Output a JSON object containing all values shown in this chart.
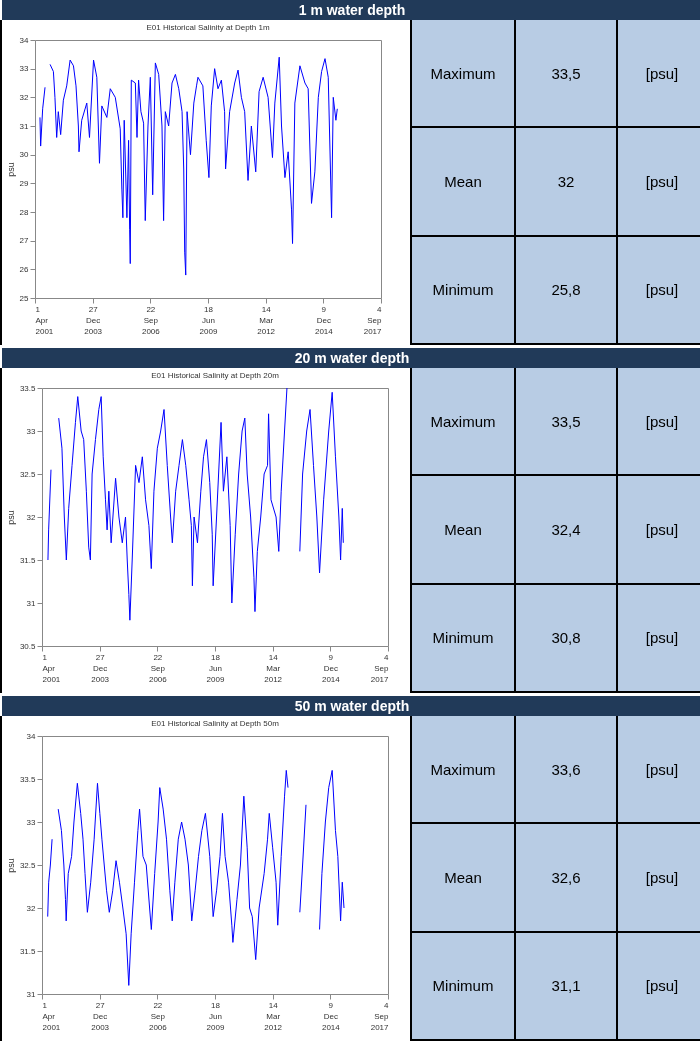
{
  "chart_data": [
    {
      "type": "line",
      "title": "E01 Historical Salinity at Depth 1m",
      "ylabel": "psu",
      "xlim": [
        "2001-04-01",
        "2017-09-04"
      ],
      "xticks": [
        {
          "value": "2001-04-01",
          "label": "1 Apr 2001"
        },
        {
          "value": "2003-12-27",
          "label": "27 Dec 2003"
        },
        {
          "value": "2006-09-22",
          "label": "22 Sep 2006"
        },
        {
          "value": "2009-06-18",
          "label": "18 Jun 2009"
        },
        {
          "value": "2012-03-14",
          "label": "14 Mar 2012"
        },
        {
          "value": "2014-12-09",
          "label": "9 Dec 2014"
        },
        {
          "value": "2017-09-04",
          "label": "4 Sep 2017"
        }
      ],
      "ylim": [
        25,
        34
      ],
      "yticks": [
        25,
        26,
        27,
        28,
        29,
        30,
        31,
        32,
        33,
        34
      ],
      "x": [
        "2001-06-26",
        "2001-07-08",
        "2001-08-12",
        "2001-09-22",
        "2001-10-15",
        "2001-12-18",
        "2002-02-14",
        "2002-03-13",
        "2002-04-12",
        "2002-05-10",
        "2002-06-20",
        "2002-08-06",
        "2002-10-03",
        "2002-12-01",
        "2003-01-28",
        "2003-03-13",
        "2003-04-23",
        "2003-05-04",
        "2003-06-20",
        "2003-09-16",
        "2003-11-02",
        "2004-01-11",
        "2004-03-08",
        "2004-04-23",
        "2004-06-03",
        "2004-08-29",
        "2004-10-27",
        "2005-01-22",
        "2005-04-18",
        "2005-05-16",
        "2005-06-03",
        "2005-06-26",
        "2005-08-12",
        "2005-09-10",
        "2005-09-28",
        "2005-10-09",
        "2005-10-27",
        "2006-01-05",
        "2006-02-03",
        "2006-03-02",
        "2006-04-12",
        "2006-05-28",
        "2006-06-26",
        "2006-08-12",
        "2006-09-22",
        "2006-11-02",
        "2006-12-18",
        "2007-02-14",
        "2007-04-12",
        "2007-05-10",
        "2007-06-09",
        "2007-08-06",
        "2007-10-03",
        "2007-12-01",
        "2008-01-28",
        "2008-03-25",
        "2008-04-23",
        "2008-05-10",
        "2008-05-28",
        "2008-06-20",
        "2008-08-18",
        "2008-10-15",
        "2008-12-01",
        "2008-12-26",
        "2009-03-21",
        "2009-05-18",
        "2009-07-04",
        "2009-08-14",
        "2009-10-11",
        "2009-12-08",
        "2010-02-05",
        "2010-04-02",
        "2010-04-19",
        "2010-06-28",
        "2010-09-24",
        "2010-11-21",
        "2011-01-18",
        "2011-03-16",
        "2011-05-13",
        "2011-07-10",
        "2011-09-24",
        "2011-11-21",
        "2012-01-30",
        "2012-04-25",
        "2012-07-10",
        "2012-08-20",
        "2012-11-04",
        "2012-12-14",
        "2013-02-11",
        "2013-04-08",
        "2013-06-05",
        "2013-06-23",
        "2013-08-02",
        "2013-10-29",
        "2014-01-24",
        "2014-03-21",
        "2014-05-18",
        "2014-07-15",
        "2014-09-13",
        "2014-11-09",
        "2015-01-07",
        "2015-03-04",
        "2015-05-01",
        "2015-05-30",
        "2015-07-15",
        "2015-08-08"
      ],
      "series": [
        {
          "color": "#0000ff",
          "values": [
            31.3,
            30.3,
            31.6,
            32.35,
            null,
            33.15,
            32.9,
            32.0,
            30.6,
            31.5,
            30.7,
            31.9,
            32.4,
            33.3,
            33.1,
            32.4,
            31.0,
            30.1,
            31.2,
            31.8,
            30.6,
            33.3,
            32.7,
            29.7,
            31.7,
            31.3,
            32.3,
            32.0,
            30.9,
            28.8,
            27.8,
            31.2,
            27.8,
            30.5,
            27.4,
            26.2,
            32.6,
            32.5,
            30.6,
            32.6,
            31.5,
            31.1,
            27.7,
            31.0,
            32.7,
            28.6,
            33.2,
            32.8,
            31.0,
            27.7,
            31.5,
            31.0,
            32.5,
            32.8,
            32.3,
            31.5,
            29.5,
            26.6,
            25.8,
            31.5,
            30.0,
            31.8,
            32.4,
            32.7,
            32.4,
            30.5,
            29.2,
            31.7,
            33.0,
            32.3,
            32.6,
            31.5,
            29.5,
            31.5,
            32.5,
            32.95,
            32.0,
            31.5,
            29.1,
            31.0,
            29.4,
            32.2,
            32.7,
            32.0,
            29.9,
            31.8,
            33.4,
            31.0,
            29.2,
            30.1,
            28.1,
            26.9,
            31.8,
            33.1,
            32.5,
            32.3,
            28.3,
            29.4,
            32.0,
            32.9,
            33.35,
            32.7,
            27.8,
            32.0,
            31.2,
            31.6
          ]
        }
      ]
    },
    {
      "type": "other",
      "title": "1 m water depth",
      "annotations": [
        "Maximum",
        "33,5",
        "[psu]",
        "Mean",
        "32",
        "[psu]",
        "Minimum",
        "25,8",
        "[psu]"
      ]
    },
    {
      "type": "line",
      "title": "E01 Historical Salinity at Depth 20m",
      "ylabel": "psu",
      "xlim": [
        "2001-04-01",
        "2017-09-04"
      ],
      "xticks": [
        {
          "value": "2001-04-01",
          "label": "1 Apr 2001"
        },
        {
          "value": "2003-12-27",
          "label": "27 Dec 2003"
        },
        {
          "value": "2006-09-22",
          "label": "22 Sep 2006"
        },
        {
          "value": "2009-06-18",
          "label": "18 Jun 2009"
        },
        {
          "value": "2012-03-14",
          "label": "14 Mar 2012"
        },
        {
          "value": "2014-12-09",
          "label": "9 Dec 2014"
        },
        {
          "value": "2017-09-04",
          "label": "4 Sep 2017"
        }
      ],
      "ylim": [
        30.5,
        33.5
      ],
      "yticks": [
        30.5,
        31,
        31.5,
        32,
        32.5,
        33,
        33.5
      ],
      "x": [
        "2001-07-13",
        "2001-07-25",
        "2001-09-04",
        "2001-10-20",
        "2002-01-16",
        "2002-03-13",
        "2002-04-23",
        "2002-05-28",
        "2002-07-08",
        "2002-09-04",
        "2002-11-02",
        "2002-12-12",
        "2003-02-09",
        "2003-03-25",
        "2003-05-10",
        "2003-06-20",
        "2003-07-19",
        "2003-08-18",
        "2003-10-15",
        "2003-12-12",
        "2004-01-22",
        "2004-02-26",
        "2004-04-06",
        "2004-05-04",
        "2004-06-03",
        "2004-07-13",
        "2004-09-28",
        "2004-11-25",
        "2005-01-22",
        "2005-03-19",
        "2005-04-18",
        "2005-05-16",
        "2005-06-03",
        "2005-07-13",
        "2005-09-10",
        "2005-11-08",
        "2006-01-05",
        "2006-03-02",
        "2006-04-29",
        "2006-06-09",
        "2006-07-25",
        "2006-09-22",
        "2006-11-19",
        "2007-01-16",
        "2007-03-13",
        "2007-05-10",
        "2007-06-09",
        "2007-08-06",
        "2007-10-03",
        "2007-12-01",
        "2008-01-28",
        "2008-03-25",
        "2008-05-04",
        "2008-05-22",
        "2008-06-20",
        "2008-08-18",
        "2008-10-15",
        "2008-12-01",
        "2009-01-21",
        "2009-03-19",
        "2009-05-01",
        "2009-05-17",
        "2009-07-15",
        "2009-10-01",
        "2009-11-11",
        "2010-01-10",
        "2010-03-08",
        "2010-04-06",
        "2010-06-04",
        "2010-08-02",
        "2010-10-01",
        "2010-11-17",
        "2010-12-28",
        "2011-02-26",
        "2011-04-24",
        "2011-05-12",
        "2011-06-22",
        "2011-08-20",
        "2011-10-18",
        "2011-12-16",
        "2012-01-03",
        "2012-02-14",
        "2012-05-12",
        "2012-06-28",
        "2012-08-09",
        "2012-10-06",
        "2012-11-17",
        "2013-03-01",
        "2013-06-28",
        "2013-08-15",
        "2013-10-25",
        "2013-12-22",
        "2014-02-20",
        "2014-04-19",
        "2014-06-05",
        "2014-08-15",
        "2014-11-11",
        "2015-01-10",
        "2015-03-08",
        "2015-05-06",
        "2015-06-05",
        "2015-07-04",
        "2015-07-22"
      ],
      "series": [
        {
          "color": "#0000ff",
          "values": [
            31.5,
            31.85,
            32.55,
            null,
            33.15,
            32.8,
            32.0,
            31.5,
            32.1,
            32.6,
            33.1,
            33.4,
            33.0,
            32.9,
            32.3,
            31.65,
            31.5,
            32.5,
            32.9,
            33.25,
            33.4,
            32.7,
            32.2,
            31.85,
            32.3,
            31.7,
            32.45,
            32.0,
            31.7,
            32.0,
            31.5,
            31.1,
            30.8,
            31.5,
            32.6,
            32.4,
            32.7,
            32.2,
            31.9,
            31.4,
            32.3,
            32.8,
            33.0,
            33.25,
            32.6,
            32.0,
            31.7,
            32.3,
            32.6,
            32.9,
            32.6,
            32.2,
            31.9,
            31.2,
            32.0,
            31.7,
            32.3,
            32.7,
            32.9,
            32.4,
            31.8,
            31.2,
            32.0,
            33.1,
            32.3,
            32.7,
            31.9,
            31.0,
            31.8,
            32.5,
            33.0,
            33.15,
            32.5,
            32.0,
            31.3,
            30.9,
            31.6,
            32.0,
            32.5,
            32.6,
            33.2,
            32.2,
            32.0,
            31.6,
            32.3,
            33.0,
            33.5,
            null,
            31.6,
            32.5,
            33.0,
            33.25,
            32.6,
            32.0,
            31.35,
            32.2,
            33.0,
            33.45,
            32.7,
            32.0,
            31.5,
            32.1,
            31.7
          ]
        }
      ]
    },
    {
      "type": "other",
      "title": "20 m water depth",
      "annotations": [
        "Maximum",
        "33,5",
        "[psu]",
        "Mean",
        "32,4",
        "[psu]",
        "Minimum",
        "30,8",
        "[psu]"
      ]
    },
    {
      "type": "line",
      "title": "E01 Historical Salinity at Depth 50m",
      "ylabel": "psu",
      "xlim": [
        "2001-04-01",
        "2017-09-04"
      ],
      "xticks": [
        {
          "value": "2001-04-01",
          "label": "1 Apr 2001"
        },
        {
          "value": "2003-12-27",
          "label": "27 Dec 2003"
        },
        {
          "value": "2006-09-22",
          "label": "22 Sep 2006"
        },
        {
          "value": "2009-06-18",
          "label": "18 Jun 2009"
        },
        {
          "value": "2012-03-14",
          "label": "14 Mar 2012"
        },
        {
          "value": "2014-12-09",
          "label": "9 Dec 2014"
        },
        {
          "value": "2017-09-04",
          "label": "4 Sep 2017"
        }
      ],
      "ylim": [
        31,
        34
      ],
      "yticks": [
        31,
        31.5,
        32,
        32.5,
        33,
        33.5,
        34
      ],
      "x": [
        "2001-07-09",
        "2001-07-26",
        "2001-08-24",
        "2001-09-23",
        "2001-10-25",
        "2002-01-07",
        "2002-03-04",
        "2002-04-15",
        "2002-05-13",
        "2002-05-25",
        "2002-06-30",
        "2002-08-27",
        "2002-10-07",
        "2002-12-05",
        "2003-02-01",
        "2003-03-13",
        "2003-04-17",
        "2003-05-28",
        "2003-07-25",
        "2003-09-22",
        "2003-11-19",
        "2003-12-30",
        "2004-02-04",
        "2004-03-15",
        "2004-04-25",
        "2004-06-11",
        "2004-08-09",
        "2004-10-06",
        "2004-12-04",
        "2005-02-01",
        "2005-03-30",
        "2005-05-15",
        "2005-06-25",
        "2005-08-22",
        "2005-10-20",
        "2005-11-18",
        "2006-01-16",
        "2006-03-14",
        "2006-05-11",
        "2006-06-10",
        "2006-08-07",
        "2006-10-05",
        "2006-11-03",
        "2007-01-01",
        "2007-02-28",
        "2007-04-27",
        "2007-06-07",
        "2007-07-23",
        "2007-09-20",
        "2007-11-17",
        "2008-01-15",
        "2008-03-13",
        "2008-05-11",
        "2008-07-08",
        "2008-09-05",
        "2008-11-02",
        "2009-01-03",
        "2009-03-19",
        "2009-05-17",
        "2009-07-15",
        "2009-09-13",
        "2009-10-25",
        "2009-12-10",
        "2010-02-08",
        "2010-04-06",
        "2010-04-24",
        "2010-07-04",
        "2010-09-02",
        "2010-10-31",
        "2010-12-28",
        "2011-02-08",
        "2011-03-26",
        "2011-05-25",
        "2011-07-23",
        "2011-10-18",
        "2011-12-16",
        "2012-01-15",
        "2012-03-14",
        "2012-05-12",
        "2012-06-10",
        "2012-08-09",
        "2012-10-06",
        "2012-11-05",
        "2012-12-05",
        "2013-03-01",
        "2013-06-28",
        "2013-08-15",
        "2013-10-13",
        "2014-01-01",
        "2014-06-05",
        "2014-07-16",
        "2014-09-14",
        "2014-11-11",
        "2015-01-10",
        "2015-03-08",
        "2015-04-18",
        "2015-06-05",
        "2015-07-04",
        "2015-08-03"
      ],
      "series": [
        {
          "color": "#0000ff",
          "values": [
            31.9,
            32.3,
            32.5,
            32.8,
            null,
            33.15,
            32.9,
            32.5,
            32.1,
            31.85,
            32.4,
            32.6,
            33.0,
            33.45,
            33.1,
            32.8,
            32.4,
            31.95,
            32.3,
            32.8,
            33.45,
            33.1,
            32.8,
            32.5,
            32.2,
            31.95,
            32.2,
            32.55,
            32.3,
            32.0,
            31.7,
            31.1,
            31.7,
            32.3,
            32.9,
            33.15,
            32.6,
            32.5,
            32.0,
            31.75,
            32.4,
            33.0,
            33.4,
            33.15,
            32.8,
            32.2,
            31.85,
            32.3,
            32.8,
            33.0,
            32.8,
            32.5,
            31.85,
            32.2,
            32.6,
            32.9,
            33.1,
            32.6,
            31.9,
            32.2,
            32.6,
            33.1,
            32.6,
            32.3,
            31.8,
            31.6,
            32.1,
            32.5,
            33.3,
            32.7,
            32.0,
            31.9,
            31.4,
            32.0,
            32.4,
            32.8,
            33.1,
            32.7,
            32.3,
            31.8,
            32.6,
            33.3,
            33.6,
            33.4,
            null,
            31.95,
            32.5,
            33.2,
            null,
            31.75,
            32.4,
            33.0,
            33.4,
            33.6,
            32.9,
            32.6,
            31.85,
            32.3,
            32.0
          ]
        }
      ]
    },
    {
      "type": "other",
      "title": "50 m water depth",
      "annotations": [
        "Maximum",
        "33,6",
        "[psu]",
        "Mean",
        "32,6",
        "[psu]",
        "Minimum",
        "31,1",
        "[psu]"
      ]
    }
  ]
}
